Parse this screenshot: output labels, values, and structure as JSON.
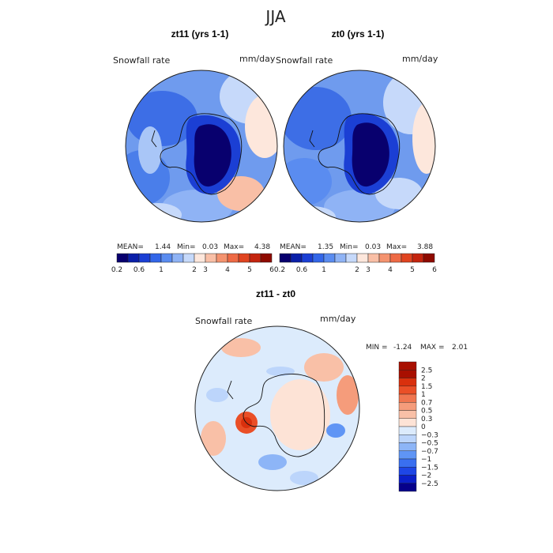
{
  "figure": {
    "season_title": "JJA"
  },
  "panels": [
    {
      "title": "zt11 (yrs 1-1)",
      "variable": "Snowfall rate",
      "units": "mm/day",
      "stats": {
        "mean_label": "MEAN=",
        "mean": "1.44",
        "min_label": "Min=",
        "min": "0.03",
        "max_label": "Max=",
        "max": "4.38"
      }
    },
    {
      "title": "zt0 (yrs 1-1)",
      "variable": "Snowfall rate",
      "units": "mm/day",
      "stats": {
        "mean_label": "MEAN=",
        "mean": "1.35",
        "min_label": "Min=",
        "min": "0.03",
        "max_label": "Max=",
        "max": "3.88"
      }
    },
    {
      "title": "zt11 - zt0",
      "variable": "Snowfall rate",
      "units": "mm/day",
      "stats": {
        "min_label": "MIN =",
        "min": "-1.24",
        "max_label": "MAX =",
        "max": "2.01"
      }
    }
  ],
  "abs_colorbar": {
    "colors": [
      "#08006e",
      "#0a1fa8",
      "#1b3fd4",
      "#3366e8",
      "#5a8cf0",
      "#8fb3f5",
      "#c6d9fa",
      "#fde7dc",
      "#f9bfa6",
      "#f4936f",
      "#ee6a45",
      "#e04420",
      "#c4240e",
      "#8e0a00"
    ],
    "tick_labels": [
      "0.2",
      "0.6",
      "1",
      "2",
      "3",
      "4",
      "5",
      "6"
    ]
  },
  "diff_colorbar": {
    "colors": [
      "#06008a",
      "#0b1fc9",
      "#1e46e6",
      "#3a6ff0",
      "#5f95f5",
      "#8db5f7",
      "#bcd5fb",
      "#dcebfc",
      "#fde3d6",
      "#f9c0a7",
      "#f59c7b",
      "#f07650",
      "#ea4f27",
      "#d9300d",
      "#a80f00"
    ],
    "tick_labels": [
      "2.5",
      "2",
      "1.5",
      "1",
      "0.7",
      "0.5",
      "0.3",
      "0",
      "−0.3",
      "−0.5",
      "−0.7",
      "−1",
      "−1.5",
      "−2",
      "−2.5"
    ]
  }
}
